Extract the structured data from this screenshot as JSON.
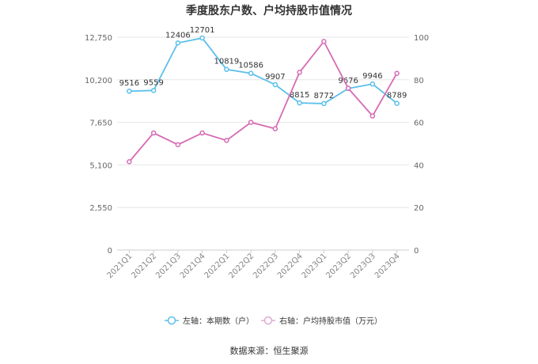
{
  "chart_data": {
    "type": "line",
    "title": "季度股东户数、户均持股市值情况",
    "categories": [
      "2021Q1",
      "2021Q2",
      "2021Q3",
      "2021Q4",
      "2022Q1",
      "2022Q2",
      "2022Q3",
      "2022Q4",
      "2023Q1",
      "2023Q2",
      "2023Q3",
      "2023Q4"
    ],
    "left_axis": {
      "ticks": [
        "0",
        "2,550",
        "5,100",
        "7,650",
        "10,200",
        "12,750"
      ],
      "ylim": [
        0,
        12750
      ]
    },
    "right_axis": {
      "ticks": [
        "0",
        "20",
        "40",
        "60",
        "80",
        "100"
      ],
      "ylim": [
        0,
        100
      ]
    },
    "series": [
      {
        "name": "左轴：本期数（户）",
        "axis": "left",
        "color": "#5bc0eb",
        "values": [
          9516,
          9559,
          12406,
          12701,
          10819,
          10586,
          9907,
          8815,
          8772,
          9676,
          9946,
          8789
        ],
        "labels": [
          "9516",
          "9559",
          "12406",
          "12701",
          "10819",
          "10586",
          "9907",
          "8815",
          "8772",
          "9676",
          "9946",
          "8789"
        ]
      },
      {
        "name": "右轴：户均持股市值（万元）",
        "axis": "right",
        "color": "#d66bb4",
        "values": [
          41.5,
          55,
          49.5,
          55,
          51.5,
          60,
          57,
          83.5,
          98,
          76,
          63,
          83
        ]
      }
    ],
    "grid": true,
    "legend_position": "bottom"
  },
  "source_text": "数据来源：恒生聚源"
}
